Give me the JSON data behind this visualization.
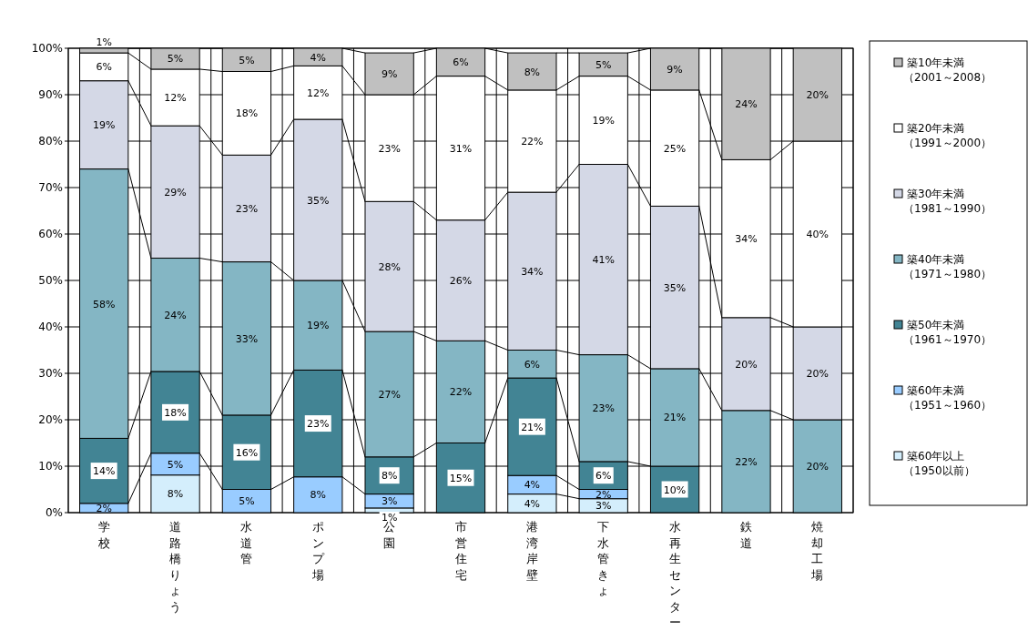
{
  "chart_data": {
    "type": "bar",
    "stacked": true,
    "categories": [
      "学校",
      "道路橋りょう",
      "水道管",
      "ポンプ場",
      "公園",
      "市営住宅",
      "港湾岸壁",
      "下水管きょ",
      "水再生センター",
      "鉄道",
      "焼却工場"
    ],
    "series": [
      {
        "name": "築60年以上（1950以前）",
        "color": "#d4eefc",
        "values": [
          null,
          8.1,
          null,
          null,
          1,
          null,
          4,
          3,
          null,
          null,
          null
        ],
        "value_labels": [
          null,
          "8%",
          null,
          null,
          "1%",
          null,
          "4%",
          "3%",
          null,
          null,
          null
        ]
      },
      {
        "name": "築60年未満（1951～1960）",
        "color": "#99ccff",
        "values": [
          2,
          4.7,
          5,
          7.7,
          3,
          null,
          4,
          2,
          null,
          null,
          null
        ],
        "value_labels": [
          "2%",
          "5%",
          "5%",
          "8%",
          "3%",
          null,
          "4%",
          "2%",
          null,
          null,
          null
        ]
      },
      {
        "name": "築50年未満（1961～1970）",
        "color": "#428494",
        "values": [
          14,
          17.6,
          16,
          23,
          8,
          15,
          21,
          6,
          10,
          null,
          null
        ],
        "value_labels": [
          "14%",
          "18%",
          "16%",
          "23%",
          "8%",
          "15%",
          "21%",
          "6%",
          "10%",
          null,
          null
        ]
      },
      {
        "name": "築40年未満（1971～1980）",
        "color": "#84b6c4",
        "values": [
          58,
          24.4,
          33,
          19.3,
          27,
          22,
          6,
          23,
          21,
          22,
          20
        ],
        "value_labels": [
          "58%",
          "24%",
          "33%",
          "19%",
          "27%",
          "22%",
          "6%",
          "23%",
          "21%",
          "22%",
          "20%"
        ]
      },
      {
        "name": "築30年未満（1981～1990）",
        "color": "#d4d8e6",
        "values": [
          19,
          28.5,
          23,
          34.7,
          28,
          26,
          34,
          41,
          35,
          20,
          20
        ],
        "value_labels": [
          "19%",
          "29%",
          "23%",
          "35%",
          "28%",
          "26%",
          "34%",
          "41%",
          "35%",
          "20%",
          "20%"
        ]
      },
      {
        "name": "築20年未満（1991～2000）",
        "color": "#ffffff",
        "values": [
          6,
          12.2,
          18,
          11.5,
          23,
          31,
          22,
          19,
          25,
          34,
          40
        ],
        "value_labels": [
          "6%",
          "12%",
          "18%",
          "12%",
          "23%",
          "31%",
          "22%",
          "19%",
          "25%",
          "34%",
          "40%"
        ]
      },
      {
        "name": "築10年未満（2001～2008）",
        "color": "#c0c0c0",
        "values": [
          1,
          4.5,
          5,
          3.8,
          9,
          6,
          8,
          5,
          9,
          24,
          20
        ],
        "value_labels": [
          "1%",
          "5%",
          "5%",
          "4%",
          "9%",
          "6%",
          "8%",
          "5%",
          "9%",
          "24%",
          "20%"
        ]
      }
    ],
    "ylim": [
      0,
      100
    ],
    "yticks": [
      {
        "value": 0,
        "label": "0%"
      },
      {
        "value": 10,
        "label": "10%"
      },
      {
        "value": 20,
        "label": "20%"
      },
      {
        "value": 30,
        "label": "30%"
      },
      {
        "value": 40,
        "label": "40%"
      },
      {
        "value": 50,
        "label": "50%"
      },
      {
        "value": 60,
        "label": "60%"
      },
      {
        "value": 70,
        "label": "70%"
      },
      {
        "value": 80,
        "label": "80%"
      },
      {
        "value": 90,
        "label": "90%"
      },
      {
        "value": 100,
        "label": "100%"
      }
    ],
    "grid": true,
    "legend": "right"
  }
}
